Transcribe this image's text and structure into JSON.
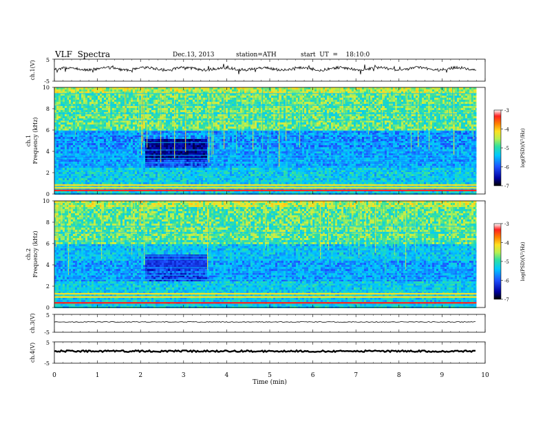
{
  "header": {
    "title": "VLF  Spectra",
    "date": "Dec.13, 2013",
    "station": "station=ATH",
    "start": "start  UT  =    18:10:0"
  },
  "chart_data": [
    {
      "type": "line",
      "panel": "ch1-waveform",
      "ylabel": "ch.1(V)",
      "ylim": [
        -5,
        5
      ],
      "yticks": [
        "5",
        "-5"
      ],
      "xlim": [
        0,
        10
      ],
      "baseline": 0.0,
      "noise": "high"
    },
    {
      "type": "heatmap",
      "panel": "ch1-spectrogram",
      "ylabel": "ch.1\nFrequency  (kHz)",
      "ylim": [
        0,
        10
      ],
      "yticks": [
        "0",
        "2",
        "4",
        "6",
        "8",
        "10"
      ],
      "xlim": [
        0,
        9.8
      ],
      "colorbar": {
        "label": "log(PSD)(V²/Hz)",
        "range": [
          -7,
          -3
        ],
        "ticks": [
          "-3",
          "-4",
          "-5",
          "-6",
          "-7"
        ],
        "colors": [
          "#000000",
          "#0000a0",
          "#1e50ff",
          "#00c8ff",
          "#30e0a0",
          "#b8f050",
          "#ffe020",
          "#ff8000",
          "#ff2020",
          "#ffffff"
        ]
      },
      "segments_min": [
        0,
        2.1,
        3.5,
        9.15,
        9.8
      ],
      "lines_khz": [
        0.35,
        0.5,
        0.6,
        0.85,
        1.1,
        1.5,
        2.2,
        2.5,
        2.9,
        3.3,
        3.6,
        4.1,
        4.8,
        5.5,
        5.9,
        6.9,
        7.5,
        8.3,
        9.4
      ],
      "strong_lines_khz": [
        0.35,
        0.6,
        0.85
      ]
    },
    {
      "type": "heatmap",
      "panel": "ch2-spectrogram",
      "ylabel": "ch.2\nFrequency  (kHz)",
      "ylim": [
        0,
        10
      ],
      "yticks": [
        "0",
        "2",
        "4",
        "6",
        "8",
        "10"
      ],
      "xlim": [
        0,
        9.8
      ],
      "colorbar": {
        "label": "log(PSD)(V²/Hz)",
        "range": [
          -7,
          -3
        ],
        "ticks": [
          "-3",
          "-4",
          "-5",
          "-6",
          "-7"
        ]
      },
      "lines_khz": [
        0.2,
        0.45,
        0.7,
        1.0,
        1.3,
        1.6,
        1.9,
        2.2,
        2.6,
        3.0,
        3.3,
        3.7,
        4.5,
        4.8,
        5.2,
        5.6,
        6.2,
        7.0,
        7.6
      ],
      "strong_lines_khz": [
        0.45,
        1.0,
        1.3
      ]
    },
    {
      "type": "line",
      "panel": "ch3-waveform",
      "ylabel": "ch.3(V)",
      "ylim": [
        -5,
        5
      ],
      "yticks": [
        "5",
        "-5"
      ],
      "xlim": [
        0,
        10
      ],
      "baseline": 0.0,
      "noise": "low"
    },
    {
      "type": "line",
      "panel": "ch4-waveform",
      "ylabel": "ch.4(V)",
      "ylim": [
        -5,
        5
      ],
      "yticks": [
        "5",
        "-5"
      ],
      "xlim": [
        0,
        10
      ],
      "baseline": 0.0,
      "noise": "thick"
    }
  ],
  "xaxis": {
    "label": "Time  (min)",
    "ticks": [
      "0",
      "1",
      "2",
      "3",
      "4",
      "5",
      "6",
      "7",
      "8",
      "9",
      "10"
    ],
    "range": [
      0,
      10
    ]
  }
}
